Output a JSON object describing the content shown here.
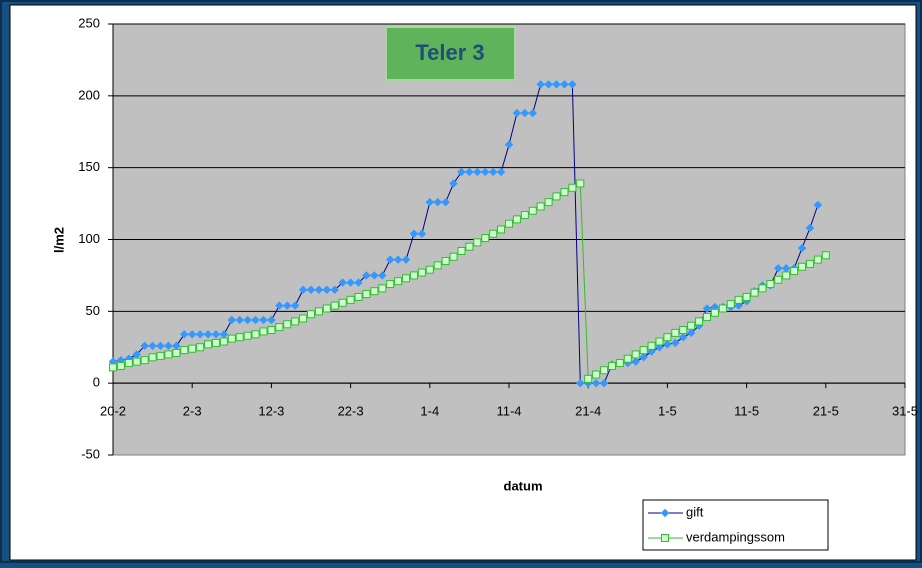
{
  "chart_data": {
    "type": "line",
    "title": "Teler 3",
    "x_label": "datum",
    "y_label": "l/m2",
    "x": [
      "20-2",
      "21-2",
      "22-2",
      "23-2",
      "24-2",
      "25-2",
      "26-2",
      "27-2",
      "28-2",
      "1-3",
      "2-3",
      "3-3",
      "4-3",
      "5-3",
      "6-3",
      "7-3",
      "8-3",
      "9-3",
      "10-3",
      "11-3",
      "12-3",
      "13-3",
      "14-3",
      "15-3",
      "16-3",
      "17-3",
      "18-3",
      "19-3",
      "20-3",
      "21-3",
      "22-3",
      "23-3",
      "24-3",
      "25-3",
      "26-3",
      "27-3",
      "28-3",
      "29-3",
      "30-3",
      "31-3",
      "1-4",
      "2-4",
      "3-4",
      "4-4",
      "5-4",
      "6-4",
      "7-4",
      "8-4",
      "9-4",
      "10-4",
      "11-4",
      "12-4",
      "13-4",
      "14-4",
      "15-4",
      "16-4",
      "17-4",
      "18-4",
      "19-4",
      "20-4",
      "21-4",
      "22-4",
      "23-4",
      "24-4",
      "25-4",
      "26-4",
      "27-4",
      "28-4",
      "29-4",
      "30-4",
      "1-5",
      "2-5",
      "3-5",
      "4-5",
      "5-5",
      "6-5",
      "7-5",
      "8-5",
      "9-5",
      "10-5",
      "11-5",
      "12-5",
      "13-5",
      "14-5",
      "15-5",
      "16-5",
      "17-5",
      "18-5",
      "19-5",
      "20-5",
      "21-5"
    ],
    "series": [
      {
        "name": "gift",
        "color": "#000080",
        "marker_color": "#3399ff",
        "marker": "diamond",
        "values": [
          15,
          16,
          17,
          20,
          26,
          26,
          26,
          26,
          26,
          34,
          34,
          34,
          34,
          34,
          34,
          44,
          44,
          44,
          44,
          44,
          44,
          54,
          54,
          54,
          65,
          65,
          65,
          65,
          65,
          70,
          70,
          70,
          75,
          75,
          75,
          86,
          86,
          86,
          104,
          104,
          126,
          126,
          126,
          139,
          147,
          147,
          147,
          147,
          147,
          147,
          166,
          188,
          188,
          188,
          208,
          208,
          208,
          208,
          208,
          0,
          0,
          0,
          0,
          13,
          14,
          14,
          15,
          18,
          22,
          25,
          27,
          28,
          32,
          35,
          40,
          52,
          53,
          53,
          53,
          54,
          57,
          64,
          68,
          68,
          80,
          80,
          80,
          94,
          108,
          124,
          null
        ]
      },
      {
        "name": "verdampingssom",
        "color": "#33bb33",
        "marker_color": "#ccffcc",
        "marker": "square",
        "values": [
          11,
          12,
          14,
          15,
          16,
          18,
          19,
          20,
          21,
          23,
          24,
          25,
          27,
          28,
          29,
          31,
          32,
          33,
          34,
          36,
          37,
          39,
          41,
          43,
          45,
          48,
          50,
          52,
          54,
          56,
          58,
          60,
          62,
          64,
          66,
          69,
          71,
          73,
          75,
          77,
          79,
          82,
          85,
          88,
          92,
          95,
          98,
          101,
          104,
          107,
          111,
          114,
          117,
          120,
          123,
          126,
          130,
          133,
          136,
          139,
          3,
          6,
          9,
          12,
          14,
          17,
          20,
          23,
          26,
          29,
          32,
          35,
          37,
          40,
          43,
          46,
          49,
          52,
          55,
          58,
          60,
          63,
          66,
          69,
          72,
          75,
          78,
          81,
          83,
          86,
          89
        ]
      }
    ],
    "xlim": [
      "20-2",
      "31-5"
    ],
    "xticks": [
      "20-2",
      "2-3",
      "12-3",
      "22-3",
      "1-4",
      "11-4",
      "21-4",
      "1-5",
      "11-5",
      "21-5",
      "31-5"
    ],
    "ylim": [
      -50,
      250
    ],
    "yticks": [
      -50,
      0,
      50,
      100,
      150,
      200,
      250
    ],
    "grid": true
  }
}
